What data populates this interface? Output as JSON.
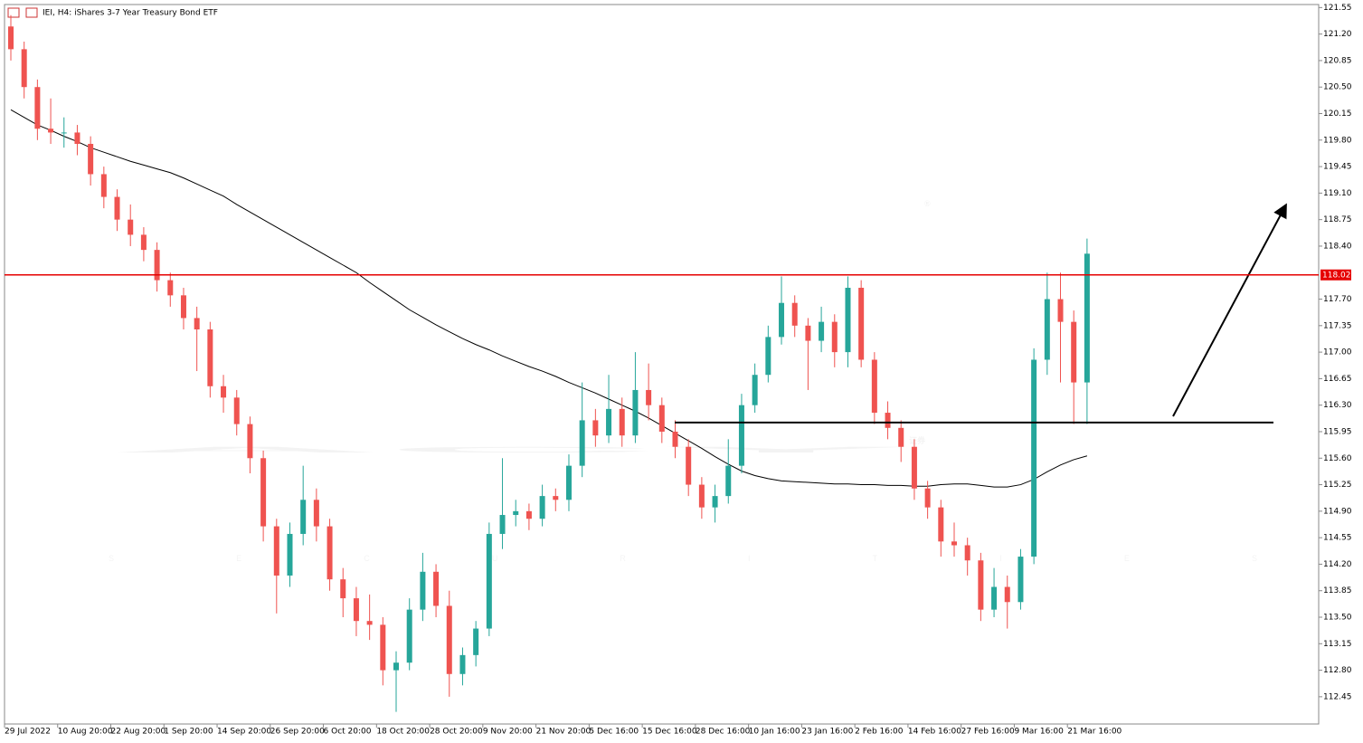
{
  "chart_data": {
    "type": "candlestick",
    "title": "IEI, H4:  iShares 3-7 Year Treasury Bond ETF",
    "watermark": {
      "logo": "ACY",
      "mark": "®",
      "chinese": "证券",
      "sub": "SECURITIES"
    },
    "categories": [
      "29 Jul 2022",
      null,
      null,
      null,
      "10 Aug 20:00",
      null,
      null,
      null,
      "22 Aug 20:00",
      null,
      null,
      null,
      "1 Sep 20:00",
      null,
      null,
      null,
      "14 Sep 20:00",
      null,
      null,
      null,
      "26 Sep 20:00",
      null,
      null,
      null,
      "6 Oct 20:00",
      null,
      null,
      null,
      "18 Oct 20:00",
      null,
      null,
      null,
      "28 Oct 20:00",
      null,
      null,
      null,
      "9 Nov 20:00",
      null,
      null,
      null,
      "21 Nov 20:00",
      null,
      null,
      null,
      "5 Dec 16:00",
      null,
      null,
      null,
      "15 Dec 16:00",
      null,
      null,
      null,
      "28 Dec 16:00",
      null,
      null,
      null,
      "10 Jan 16:00",
      null,
      null,
      null,
      "23 Jan 16:00",
      null,
      null,
      null,
      "2 Feb 16:00",
      null,
      null,
      null,
      "14 Feb 16:00",
      null,
      null,
      null,
      "27 Feb 16:00",
      null,
      null,
      null,
      "9 Mar 16:00",
      null,
      null,
      null,
      "21 Mar 16:00",
      null
    ],
    "open": [
      121.3,
      121.0,
      120.5,
      119.95,
      119.9,
      119.9,
      119.75,
      119.35,
      119.05,
      118.75,
      118.55,
      118.35,
      117.95,
      117.75,
      117.45,
      117.3,
      116.55,
      116.4,
      116.05,
      115.6,
      114.7,
      114.05,
      114.6,
      115.05,
      114.7,
      114.0,
      113.75,
      113.45,
      113.4,
      112.8,
      112.9,
      113.6,
      114.1,
      113.65,
      112.75,
      113.0,
      113.35,
      114.6,
      114.85,
      114.9,
      114.8,
      115.1,
      115.05,
      115.5,
      116.1,
      115.9,
      116.25,
      115.9,
      116.5,
      116.3,
      115.95,
      115.75,
      115.25,
      114.95,
      115.1,
      115.5,
      116.3,
      116.7,
      117.2,
      117.65,
      117.35,
      117.15,
      117.4,
      117.0,
      117.85,
      116.9,
      116.2,
      116.0,
      115.75,
      115.2,
      114.95,
      114.5,
      114.45,
      114.25,
      113.6,
      113.9,
      113.7,
      114.3,
      116.9,
      117.7,
      117.4,
      116.6
    ],
    "high": [
      121.45,
      121.1,
      120.6,
      120.35,
      120.1,
      120.0,
      119.85,
      119.45,
      119.15,
      118.95,
      118.65,
      118.45,
      118.05,
      117.85,
      117.6,
      117.4,
      116.7,
      116.5,
      116.15,
      115.7,
      114.8,
      114.75,
      115.5,
      115.2,
      114.8,
      114.15,
      113.9,
      113.8,
      113.5,
      113.05,
      113.75,
      114.35,
      114.2,
      113.85,
      113.1,
      113.45,
      114.75,
      115.6,
      115.05,
      115.0,
      115.25,
      115.2,
      115.65,
      116.6,
      116.25,
      116.7,
      116.4,
      117.0,
      116.85,
      116.4,
      116.1,
      115.85,
      115.35,
      115.25,
      115.85,
      116.45,
      116.85,
      117.35,
      118.0,
      117.75,
      117.45,
      117.6,
      117.5,
      118.0,
      117.95,
      117.0,
      116.35,
      116.1,
      115.85,
      115.3,
      115.05,
      114.75,
      114.55,
      114.35,
      114.15,
      114.05,
      114.4,
      117.05,
      118.05,
      118.05,
      117.55,
      118.5
    ],
    "low": [
      120.85,
      120.35,
      119.8,
      119.75,
      119.7,
      119.6,
      119.2,
      118.9,
      118.6,
      118.4,
      118.2,
      117.8,
      117.6,
      117.3,
      116.75,
      116.4,
      116.2,
      115.9,
      115.4,
      114.5,
      113.55,
      113.9,
      114.45,
      114.5,
      113.85,
      113.5,
      113.25,
      113.2,
      112.6,
      112.25,
      112.8,
      113.45,
      113.5,
      112.45,
      112.6,
      112.85,
      113.25,
      114.4,
      114.7,
      114.65,
      114.7,
      114.9,
      114.9,
      115.35,
      115.75,
      115.8,
      115.75,
      115.8,
      116.1,
      115.8,
      115.6,
      115.1,
      114.8,
      114.75,
      115.0,
      115.4,
      116.2,
      116.6,
      117.1,
      117.2,
      116.5,
      117.0,
      116.8,
      116.8,
      116.8,
      116.05,
      115.85,
      115.55,
      115.05,
      114.8,
      114.3,
      114.3,
      114.05,
      113.45,
      113.5,
      113.35,
      113.6,
      114.2,
      116.7,
      116.6,
      116.05,
      116.05
    ],
    "close": [
      121.0,
      120.5,
      119.95,
      119.9,
      119.9,
      119.75,
      119.35,
      119.05,
      118.75,
      118.55,
      118.35,
      117.95,
      117.75,
      117.45,
      117.3,
      116.55,
      116.4,
      116.05,
      115.6,
      114.7,
      114.05,
      114.6,
      115.05,
      114.7,
      114.0,
      113.75,
      113.45,
      113.4,
      112.8,
      112.9,
      113.6,
      114.1,
      113.65,
      112.75,
      113.0,
      113.35,
      114.6,
      114.85,
      114.9,
      114.8,
      115.1,
      115.05,
      115.5,
      116.1,
      115.9,
      116.25,
      115.9,
      116.5,
      116.3,
      115.95,
      115.75,
      115.25,
      114.95,
      115.1,
      115.5,
      116.3,
      116.7,
      117.2,
      117.65,
      117.35,
      117.15,
      117.4,
      117.0,
      117.85,
      116.9,
      116.2,
      116.0,
      115.75,
      115.2,
      114.95,
      114.5,
      114.45,
      114.25,
      113.6,
      113.9,
      113.7,
      114.3,
      116.9,
      117.7,
      117.4,
      116.6,
      118.3
    ],
    "up_color": "#26a69a",
    "down_color": "#ef5350",
    "moving_average": {
      "color": "#000000",
      "values": [
        120.2,
        120.1,
        120.0,
        119.93,
        119.85,
        119.78,
        119.7,
        119.64,
        119.58,
        119.52,
        119.47,
        119.42,
        119.37,
        119.3,
        119.22,
        119.14,
        119.06,
        118.95,
        118.85,
        118.75,
        118.65,
        118.55,
        118.45,
        118.35,
        118.25,
        118.15,
        118.05,
        117.92,
        117.8,
        117.68,
        117.56,
        117.46,
        117.36,
        117.27,
        117.18,
        117.1,
        117.03,
        116.95,
        116.88,
        116.81,
        116.75,
        116.68,
        116.6,
        116.53,
        116.46,
        116.38,
        116.3,
        116.22,
        116.13,
        116.03,
        115.93,
        115.83,
        115.73,
        115.62,
        115.52,
        115.43,
        115.37,
        115.33,
        115.3,
        115.29,
        115.28,
        115.27,
        115.26,
        115.26,
        115.25,
        115.25,
        115.24,
        115.24,
        115.23,
        115.23,
        115.25,
        115.26,
        115.26,
        115.24,
        115.22,
        115.22,
        115.25,
        115.32,
        115.42,
        115.51,
        115.58,
        115.63
      ]
    },
    "level": {
      "value": 118.02,
      "color": "#e60000"
    },
    "support_level": {
      "value": 116.07,
      "color": "#000000"
    },
    "ylim": [
      112.09,
      121.59
    ],
    "yticks": [
      {
        "value": 121.55,
        "label": "121.55"
      },
      {
        "value": 121.2,
        "label": "121.20"
      },
      {
        "value": 120.85,
        "label": "120.85"
      },
      {
        "value": 120.5,
        "label": "120.50"
      },
      {
        "value": 120.15,
        "label": "120.15"
      },
      {
        "value": 119.8,
        "label": "119.80"
      },
      {
        "value": 119.45,
        "label": "119.45"
      },
      {
        "value": 119.1,
        "label": "119.10"
      },
      {
        "value": 118.75,
        "label": "118.75"
      },
      {
        "value": 118.4,
        "label": "118.40"
      },
      {
        "value": 117.7,
        "label": "117.70"
      },
      {
        "value": 117.35,
        "label": "117.35"
      },
      {
        "value": 117.0,
        "label": "117.00"
      },
      {
        "value": 116.65,
        "label": "116.65"
      },
      {
        "value": 116.3,
        "label": "116.30"
      },
      {
        "value": 115.95,
        "label": "115.95"
      },
      {
        "value": 115.6,
        "label": "115.60"
      },
      {
        "value": 115.25,
        "label": "115.25"
      },
      {
        "value": 114.9,
        "label": "114.90"
      },
      {
        "value": 114.55,
        "label": "114.55"
      },
      {
        "value": 114.2,
        "label": "114.20"
      },
      {
        "value": 113.85,
        "label": "113.85"
      },
      {
        "value": 113.5,
        "label": "113.50"
      },
      {
        "value": 113.15,
        "label": "113.15"
      },
      {
        "value": 112.8,
        "label": "112.80"
      },
      {
        "value": 112.45,
        "label": "112.45"
      }
    ]
  }
}
